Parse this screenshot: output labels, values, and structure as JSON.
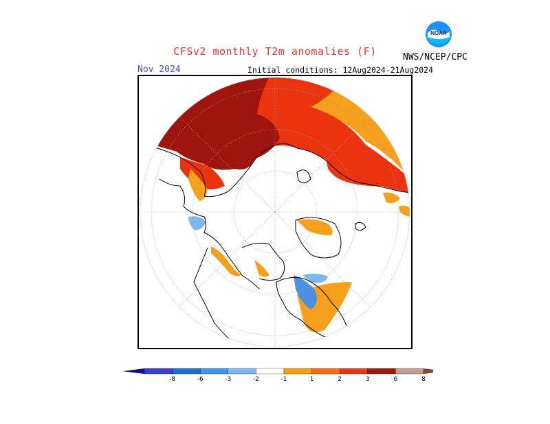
{
  "title": "CFSv2 monthly T2m anomalies (F)",
  "valid_month": "Nov 2024",
  "initial_conditions": "Initial conditions: 12Aug2024-21Aug2024",
  "agency": "NWS/NCEP/CPC",
  "logo": {
    "text": "NOAA",
    "name": "noaa-logo"
  },
  "colorbar": {
    "ticks": [
      "-8",
      "-6",
      "-3",
      "-2",
      "-1",
      "1",
      "2",
      "3",
      "6",
      "8"
    ],
    "colors": [
      "#1a0f8c",
      "#3d3fd0",
      "#1d6fd6",
      "#3d96ee",
      "#7ab8f5",
      "#ffffff",
      "#f5a00a",
      "#ff6a10",
      "#e33b10",
      "#9b1a0a",
      "#c4a090",
      "#7a4a3a"
    ]
  },
  "colors": {
    "dark_red": "#a0140e",
    "red": "#ea3410",
    "orange_red": "#ff5a10",
    "orange": "#f7a01b",
    "light_blue": "#7eb8ee",
    "mid_blue": "#4a90e2"
  }
}
